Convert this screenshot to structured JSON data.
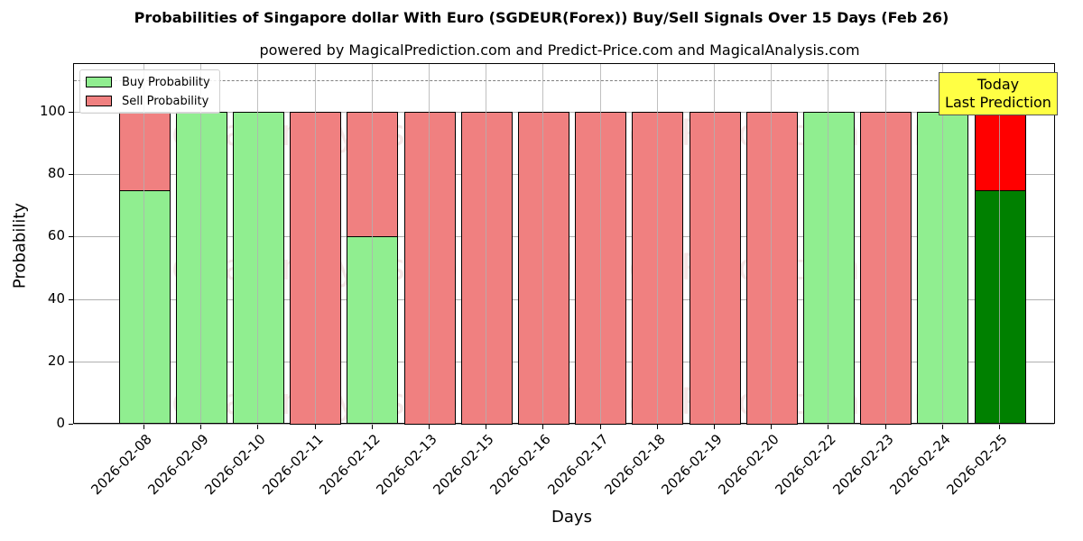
{
  "title": "Probabilities of Singapore dollar With Euro (SGDEUR(Forex)) Buy/Sell Signals Over 15 Days (Feb 26)",
  "subtitle": "powered by MagicalPrediction.com and Predict-Price.com and MagicalAnalysis.com",
  "watermarks": [
    "MagicalAnalysis.com",
    "MagicalPrediction.com"
  ],
  "annotation": {
    "line1": "Today",
    "line2": "Last Prediction"
  },
  "legend": {
    "buy": "Buy Probability",
    "sell": "Sell Probability"
  },
  "colors": {
    "buy": "#90ee90",
    "sell": "#f08080",
    "today_buy": "#008000",
    "today_sell": "#ff0000",
    "annotation_bg": "#ffff44"
  },
  "chart_data": {
    "type": "bar",
    "stacked": true,
    "title": "Probabilities of Singapore dollar With Euro (SGDEUR(Forex)) Buy/Sell Signals Over 15 Days (Feb 26)",
    "subtitle": "powered by MagicalPrediction.com and Predict-Price.com and MagicalAnalysis.com",
    "xlabel": "Days",
    "ylabel": "Probability",
    "ylim": [
      0,
      115
    ],
    "yticks": [
      0,
      20,
      40,
      60,
      80,
      100
    ],
    "reference_line": 110,
    "grid": true,
    "legend_position": "upper left",
    "categories": [
      "2026-02-08",
      "2026-02-09",
      "2026-02-10",
      "2026-02-11",
      "2026-02-12",
      "2026-02-13",
      "2026-02-15",
      "2026-02-16",
      "2026-02-17",
      "2026-02-18",
      "2026-02-19",
      "2026-02-20",
      "2026-02-22",
      "2026-02-23",
      "2026-02-24",
      "2026-02-25"
    ],
    "series": [
      {
        "name": "Buy Probability",
        "values": [
          75,
          100,
          100,
          0,
          60,
          0,
          0,
          0,
          0,
          0,
          0,
          0,
          100,
          0,
          100,
          75
        ]
      },
      {
        "name": "Sell Probability",
        "values": [
          25,
          0,
          0,
          100,
          40,
          100,
          100,
          100,
          100,
          100,
          100,
          100,
          0,
          100,
          0,
          25
        ]
      }
    ],
    "annotations": [
      {
        "text": "Today\nLast Prediction",
        "x": "2026-02-25"
      }
    ]
  }
}
